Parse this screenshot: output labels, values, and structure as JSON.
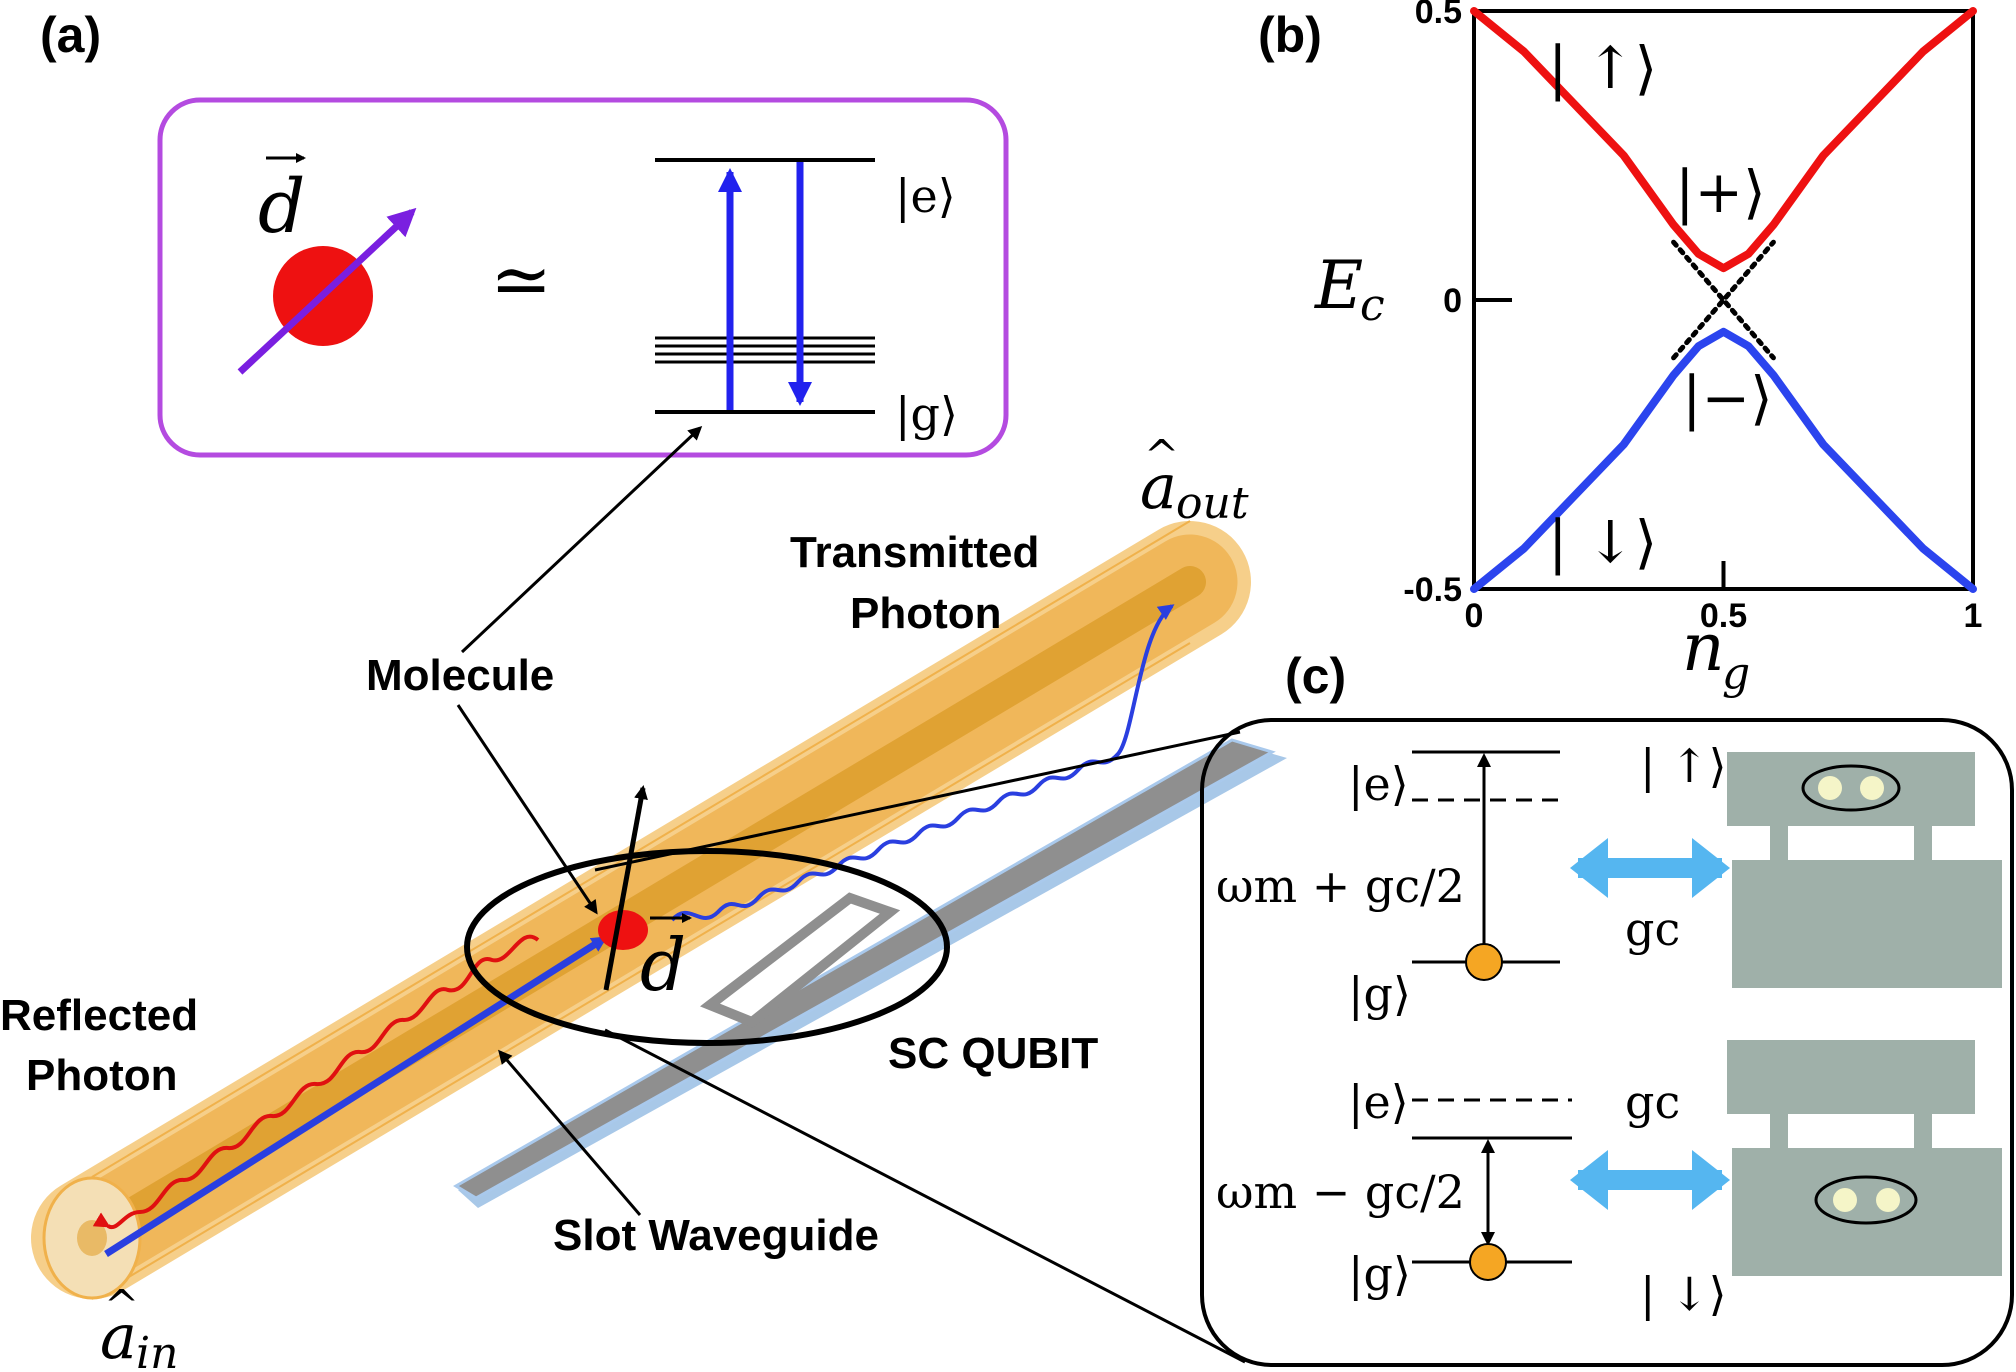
{
  "panel_a": {
    "label": "(a)",
    "inset": {
      "dipole_symbol": "d",
      "approx": "≃",
      "state_e": "|e⟩",
      "state_g": "|g⟩"
    },
    "molecule_label": "Molecule",
    "transmitted_label_1": "Transmitted",
    "transmitted_label_2": "Photon",
    "reflected_label_1": "Reflected",
    "reflected_label_2": "Photon",
    "slot_label": "Slot Waveguide",
    "qubit_label": "SC QUBIT",
    "a_in_base": "a",
    "a_in_sub": "in",
    "a_out_base": "a",
    "a_out_sub": "out",
    "dipole_symbol": "d"
  },
  "panel_b": {
    "label": "(b)",
    "ylabel_base": "E",
    "ylabel_sub": "c",
    "xlabel_base": "n",
    "xlabel_sub": "g",
    "state_up": "| ↑⟩",
    "state_down": "| ↓⟩",
    "state_plus": "|+⟩",
    "state_minus": "|−⟩",
    "colors": {
      "upper": "#ee1111",
      "lower": "#2b44ee"
    }
  },
  "chart_data": {
    "type": "line",
    "xlim": [
      0,
      1
    ],
    "ylim": [
      -0.5,
      0.5
    ],
    "xticks": [
      "0",
      "0.5",
      "1"
    ],
    "yticks": [
      "0.5",
      "0",
      "-0.5"
    ],
    "series": [
      {
        "x": [
          0,
          0.1,
          0.2,
          0.3,
          0.4,
          0.45,
          0.5,
          0.55,
          0.6,
          0.7,
          0.8,
          0.9,
          1.0
        ],
        "y": [
          0.5,
          0.43,
          0.34,
          0.25,
          0.13,
          0.08,
          0.055,
          0.08,
          0.13,
          0.25,
          0.34,
          0.43,
          0.5
        ]
      },
      {
        "x": [
          0,
          0.1,
          0.2,
          0.3,
          0.4,
          0.45,
          0.5,
          0.55,
          0.6,
          0.7,
          0.8,
          0.9,
          1.0
        ],
        "y": [
          -0.5,
          -0.43,
          -0.34,
          -0.25,
          -0.13,
          -0.08,
          -0.055,
          -0.08,
          -0.13,
          -0.25,
          -0.34,
          -0.43,
          -0.5
        ]
      },
      {
        "x": [
          0.4,
          0.6
        ],
        "y": [
          0.1,
          -0.1
        ]
      },
      {
        "x": [
          0.4,
          0.6
        ],
        "y": [
          -0.1,
          0.1
        ]
      }
    ]
  },
  "panel_c": {
    "label": "(c)",
    "top": {
      "state_e": "|e⟩",
      "state_g": "|g⟩",
      "freq": "ωm + gc/2",
      "coupling": "gc",
      "spin": "| ↑⟩"
    },
    "bottom": {
      "state_e": "|e⟩",
      "state_g": "|g⟩",
      "freq": "ωm − gc/2",
      "coupling": "gc",
      "spin": "| ↓⟩"
    }
  }
}
